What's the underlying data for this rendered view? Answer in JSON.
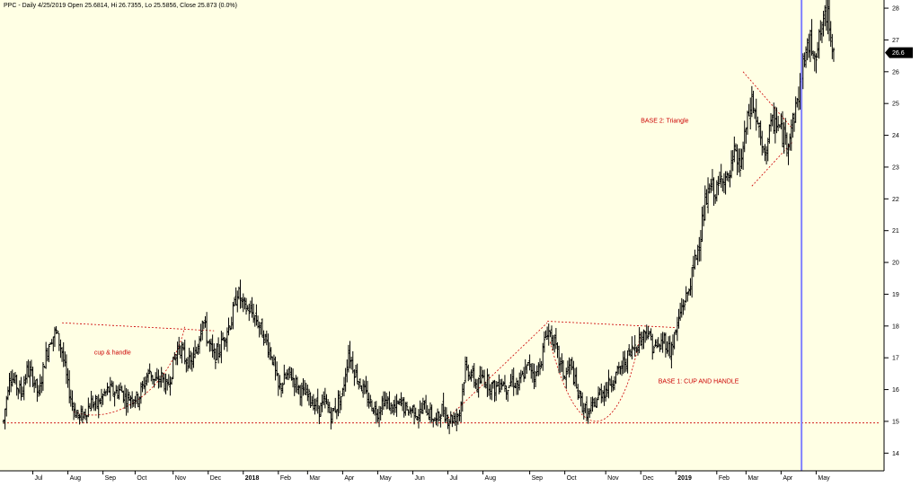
{
  "chart_data": {
    "type": "ohlc",
    "title": "PPC - Daily 4/25/2019 Open 25.6814, Hi 26.7355, Lo 25.5856, Close 25.873 (0.0%)",
    "y_ticks": [
      "14",
      "15",
      "16",
      "17",
      "18",
      "19",
      "20",
      "21",
      "22",
      "23",
      "24",
      "25",
      "26",
      "27",
      "28"
    ],
    "ylim": [
      13.5,
      28.2
    ],
    "x_labels": [
      {
        "t": 10,
        "label": "Jul"
      },
      {
        "t": 22,
        "label": "Aug"
      },
      {
        "t": 34,
        "label": "Sep"
      },
      {
        "t": 45,
        "label": "Oct"
      },
      {
        "t": 58,
        "label": "Nov"
      },
      {
        "t": 70,
        "label": "Dec"
      },
      {
        "t": 82,
        "label": "2018",
        "bold": true
      },
      {
        "t": 94,
        "label": "Feb"
      },
      {
        "t": 104,
        "label": "Mar"
      },
      {
        "t": 116,
        "label": "Apr"
      },
      {
        "t": 128,
        "label": "May"
      },
      {
        "t": 140,
        "label": "Jun"
      },
      {
        "t": 152,
        "label": "Jul"
      },
      {
        "t": 164,
        "label": "Aug"
      },
      {
        "t": 180,
        "label": "Sep"
      },
      {
        "t": 192,
        "label": "Oct"
      },
      {
        "t": 206,
        "label": "Nov"
      },
      {
        "t": 218,
        "label": "Dec"
      },
      {
        "t": 230,
        "label": "2019",
        "bold": true
      },
      {
        "t": 244,
        "label": "Feb"
      },
      {
        "t": 254,
        "label": "Mar"
      },
      {
        "t": 266,
        "label": "Apr"
      },
      {
        "t": 278,
        "label": "May"
      }
    ],
    "t_range": [
      0,
      300
    ],
    "last_price_label": "26.6",
    "last_price": 26.6,
    "vertical_marker_t": 273,
    "price_path": [
      [
        0,
        15.0
      ],
      [
        2,
        16.5
      ],
      [
        4,
        16.2
      ],
      [
        6,
        15.9
      ],
      [
        8,
        16.6
      ],
      [
        10,
        16.4
      ],
      [
        12,
        15.8
      ],
      [
        14,
        16.9
      ],
      [
        16,
        17.6
      ],
      [
        18,
        17.8
      ],
      [
        20,
        17.2
      ],
      [
        22,
        16.1
      ],
      [
        24,
        15.4
      ],
      [
        26,
        15.1
      ],
      [
        28,
        15.3
      ],
      [
        30,
        15.6
      ],
      [
        32,
        15.5
      ],
      [
        34,
        15.8
      ],
      [
        36,
        16.0
      ],
      [
        38,
        15.9
      ],
      [
        40,
        16.0
      ],
      [
        42,
        15.7
      ],
      [
        44,
        15.8
      ],
      [
        46,
        15.7
      ],
      [
        48,
        16.2
      ],
      [
        50,
        16.6
      ],
      [
        52,
        16.2
      ],
      [
        54,
        16.4
      ],
      [
        56,
        16.0
      ],
      [
        58,
        16.8
      ],
      [
        60,
        17.4
      ],
      [
        62,
        17.0
      ],
      [
        64,
        16.8
      ],
      [
        66,
        17.2
      ],
      [
        68,
        18.3
      ],
      [
        70,
        17.5
      ],
      [
        72,
        17.0
      ],
      [
        74,
        17.3
      ],
      [
        76,
        17.8
      ],
      [
        78,
        18.2
      ],
      [
        80,
        19.1
      ],
      [
        82,
        18.6
      ],
      [
        84,
        18.5
      ],
      [
        86,
        18.3
      ],
      [
        88,
        17.9
      ],
      [
        90,
        17.5
      ],
      [
        92,
        17.0
      ],
      [
        94,
        16.0
      ],
      [
        96,
        16.3
      ],
      [
        98,
        16.5
      ],
      [
        100,
        16.2
      ],
      [
        102,
        15.9
      ],
      [
        104,
        15.8
      ],
      [
        106,
        15.6
      ],
      [
        108,
        15.4
      ],
      [
        110,
        15.6
      ],
      [
        112,
        15.2
      ],
      [
        114,
        15.5
      ],
      [
        116,
        15.9
      ],
      [
        118,
        17.2
      ],
      [
        120,
        16.6
      ],
      [
        122,
        16.2
      ],
      [
        124,
        15.8
      ],
      [
        126,
        15.5
      ],
      [
        128,
        15.3
      ],
      [
        130,
        15.7
      ],
      [
        132,
        15.5
      ],
      [
        134,
        15.4
      ],
      [
        136,
        15.6
      ],
      [
        138,
        15.3
      ],
      [
        140,
        15.4
      ],
      [
        142,
        15.2
      ],
      [
        144,
        15.5
      ],
      [
        146,
        15.2
      ],
      [
        148,
        15.0
      ],
      [
        150,
        15.4
      ],
      [
        152,
        15.1
      ],
      [
        154,
        15.1
      ],
      [
        156,
        15.3
      ],
      [
        158,
        16.7
      ],
      [
        160,
        16.5
      ],
      [
        162,
        16.1
      ],
      [
        164,
        16.4
      ],
      [
        166,
        16.2
      ],
      [
        168,
        16.0
      ],
      [
        170,
        16.3
      ],
      [
        172,
        16.1
      ],
      [
        174,
        16.3
      ],
      [
        176,
        16.1
      ],
      [
        178,
        16.5
      ],
      [
        180,
        16.8
      ],
      [
        182,
        16.4
      ],
      [
        184,
        17.0
      ],
      [
        186,
        17.9
      ],
      [
        188,
        17.6
      ],
      [
        190,
        16.9
      ],
      [
        192,
        16.4
      ],
      [
        194,
        16.8
      ],
      [
        196,
        16.0
      ],
      [
        198,
        15.5
      ],
      [
        200,
        15.2
      ],
      [
        202,
        15.5
      ],
      [
        204,
        15.9
      ],
      [
        206,
        16.0
      ],
      [
        208,
        16.3
      ],
      [
        210,
        16.5
      ],
      [
        212,
        16.8
      ],
      [
        214,
        17.1
      ],
      [
        216,
        17.4
      ],
      [
        218,
        17.6
      ],
      [
        220,
        17.9
      ],
      [
        222,
        17.4
      ],
      [
        224,
        17.3
      ],
      [
        226,
        17.6
      ],
      [
        228,
        17.2
      ],
      [
        230,
        17.8
      ],
      [
        232,
        18.6
      ],
      [
        234,
        19.0
      ],
      [
        236,
        19.8
      ],
      [
        238,
        20.7
      ],
      [
        240,
        21.8
      ],
      [
        242,
        22.4
      ],
      [
        244,
        22.2
      ],
      [
        246,
        22.8
      ],
      [
        248,
        22.5
      ],
      [
        250,
        23.4
      ],
      [
        252,
        23.0
      ],
      [
        254,
        24.2
      ],
      [
        256,
        25.1
      ],
      [
        258,
        24.3
      ],
      [
        260,
        23.3
      ],
      [
        262,
        24.1
      ],
      [
        264,
        24.5
      ],
      [
        266,
        24.1
      ],
      [
        268,
        23.8
      ],
      [
        270,
        24.4
      ],
      [
        272,
        25.3
      ],
      [
        274,
        26.5
      ],
      [
        276,
        26.9
      ],
      [
        278,
        26.6
      ],
      [
        280,
        27.4
      ],
      [
        282,
        27.9
      ],
      [
        284,
        26.6
      ]
    ],
    "annotations": [
      {
        "text": "cup & handle",
        "t": 31,
        "p": 17.1
      },
      {
        "text": "BASE 1: CUP AND HANDLE",
        "t": 224,
        "p": 16.2
      },
      {
        "text": "BASE 2: Triangle",
        "t": 218,
        "p": 24.4
      }
    ],
    "guide_lines": [
      {
        "kind": "line",
        "pts": [
          [
            0,
            14.95
          ],
          [
            300,
            14.95
          ]
        ]
      },
      {
        "kind": "line",
        "pts": [
          [
            20,
            18.1
          ],
          [
            72,
            17.85
          ]
        ]
      },
      {
        "kind": "line",
        "pts": [
          [
            186,
            18.15
          ],
          [
            230,
            17.95
          ]
        ]
      },
      {
        "kind": "line",
        "pts": [
          [
            152,
            15.1
          ],
          [
            186,
            18.1
          ]
        ]
      },
      {
        "kind": "line",
        "pts": [
          [
            253,
            26.0
          ],
          [
            270,
            24.2
          ]
        ]
      },
      {
        "kind": "line",
        "pts": [
          [
            256,
            22.4
          ],
          [
            270,
            23.8
          ]
        ]
      },
      {
        "kind": "curve",
        "pts": [
          [
            24,
            15.3
          ],
          [
            40,
            14.8
          ],
          [
            58,
            16.2
          ],
          [
            62,
            18.0
          ]
        ]
      },
      {
        "kind": "curve",
        "pts": [
          [
            187,
            17.5
          ],
          [
            198,
            13.6
          ],
          [
            212,
            14.7
          ],
          [
            218,
            17.8
          ]
        ]
      }
    ]
  }
}
